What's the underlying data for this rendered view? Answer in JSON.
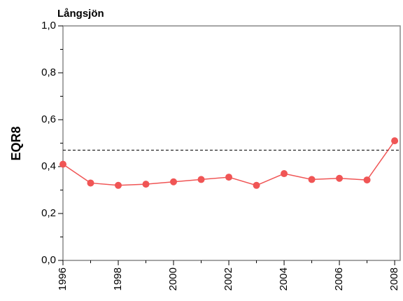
{
  "chart_data": {
    "type": "line",
    "title": "Långsjön",
    "y_label": "EQR8",
    "x": [
      1996,
      1997,
      1998,
      1999,
      2000,
      2001,
      2002,
      2003,
      2004,
      2005,
      2006,
      2007,
      2008
    ],
    "series": [
      {
        "color": "#f05555",
        "values": [
          0.41,
          0.33,
          0.32,
          0.325,
          0.335,
          0.345,
          0.355,
          0.32,
          0.37,
          0.345,
          0.35,
          0.343,
          0.51
        ]
      }
    ],
    "xlim": [
      1996,
      2008.2
    ],
    "xticks": [
      1996,
      1998,
      2000,
      2002,
      2004,
      2006,
      2008
    ],
    "xminorticks": [
      1997,
      1999,
      2001,
      2003,
      2005,
      2007
    ],
    "ylim": [
      0,
      1
    ],
    "yticks": [
      {
        "value": 0,
        "label": "0,0"
      },
      {
        "value": 0.2,
        "label": "0,2"
      },
      {
        "value": 0.4,
        "label": "0,4"
      },
      {
        "value": 0.6,
        "label": "0,6"
      },
      {
        "value": 0.8,
        "label": "0,8"
      },
      {
        "value": 1,
        "label": "1,0"
      }
    ],
    "yminorticks": [
      0.1,
      0.3,
      0.5,
      0.7,
      0.9
    ],
    "reference_line": {
      "value": 0.47,
      "style": "dashed"
    },
    "grid": false
  }
}
